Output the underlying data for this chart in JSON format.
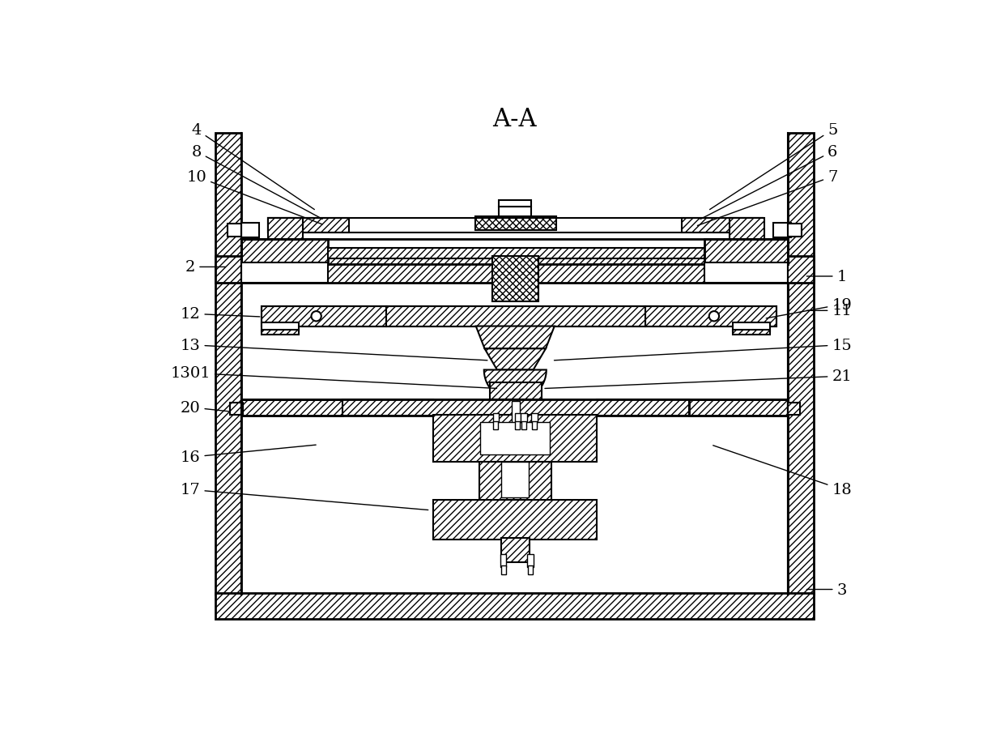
{
  "title": "A-A",
  "bg_color": "#ffffff",
  "figsize": [
    12.4,
    9.12
  ],
  "dpi": 100,
  "annotations": [
    [
      "4",
      [
        110,
        845
      ],
      [
        302,
        715
      ]
    ],
    [
      "8",
      [
        110,
        810
      ],
      [
        315,
        700
      ]
    ],
    [
      "10",
      [
        110,
        770
      ],
      [
        315,
        692
      ]
    ],
    [
      "5",
      [
        1130,
        845
      ],
      [
        930,
        715
      ]
    ],
    [
      "6",
      [
        1130,
        810
      ],
      [
        915,
        700
      ]
    ],
    [
      "7",
      [
        1130,
        770
      ],
      [
        910,
        690
      ]
    ],
    [
      "2",
      [
        100,
        625
      ],
      [
        160,
        625
      ]
    ],
    [
      "1",
      [
        1145,
        610
      ],
      [
        1085,
        610
      ]
    ],
    [
      "19",
      [
        1145,
        565
      ],
      [
        1020,
        542
      ]
    ],
    [
      "12",
      [
        100,
        550
      ],
      [
        215,
        545
      ]
    ],
    [
      "11",
      [
        1145,
        555
      ],
      [
        1085,
        555
      ]
    ],
    [
      "13",
      [
        100,
        500
      ],
      [
        580,
        475
      ]
    ],
    [
      "15",
      [
        1145,
        500
      ],
      [
        680,
        475
      ]
    ],
    [
      "1301",
      [
        100,
        455
      ],
      [
        595,
        430
      ]
    ],
    [
      "21",
      [
        1145,
        450
      ],
      [
        665,
        430
      ]
    ],
    [
      "20",
      [
        100,
        400
      ],
      [
        165,
        393
      ]
    ],
    [
      "16",
      [
        100,
        320
      ],
      [
        305,
        340
      ]
    ],
    [
      "17",
      [
        100,
        268
      ],
      [
        485,
        235
      ]
    ],
    [
      "18",
      [
        1145,
        268
      ],
      [
        935,
        340
      ]
    ],
    [
      "3",
      [
        1145,
        108
      ],
      [
        1085,
        108
      ]
    ]
  ]
}
